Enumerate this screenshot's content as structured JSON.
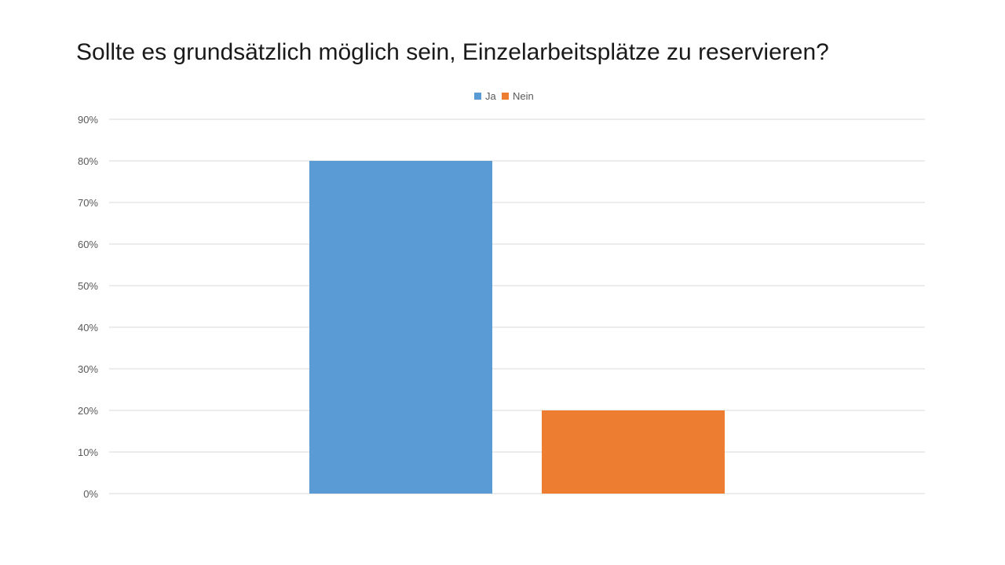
{
  "slide": {
    "title": "Sollte es grundsätzlich möglich sein, Einzelarbeitsplätze zu reservieren?"
  },
  "chart_data": {
    "type": "bar",
    "title": "Sollte es grundsätzlich möglich sein, Einzelarbeitsplätze zu reservieren?",
    "xlabel": "",
    "ylabel": "",
    "categories": [
      ""
    ],
    "series": [
      {
        "name": "Ja",
        "values": [
          80
        ],
        "color": "#5b9bd5"
      },
      {
        "name": "Nein",
        "values": [
          20
        ],
        "color": "#ed7d31"
      }
    ],
    "ylim": [
      0,
      90
    ],
    "yticks": [
      0,
      10,
      20,
      30,
      40,
      50,
      60,
      70,
      80,
      90
    ],
    "ytick_labels": [
      "0%",
      "10%",
      "20%",
      "30%",
      "40%",
      "50%",
      "60%",
      "70%",
      "80%",
      "90%"
    ],
    "value_unit": "%",
    "grid": true,
    "gridline_color": "#d9d9d9",
    "legend_position": "top-center"
  }
}
